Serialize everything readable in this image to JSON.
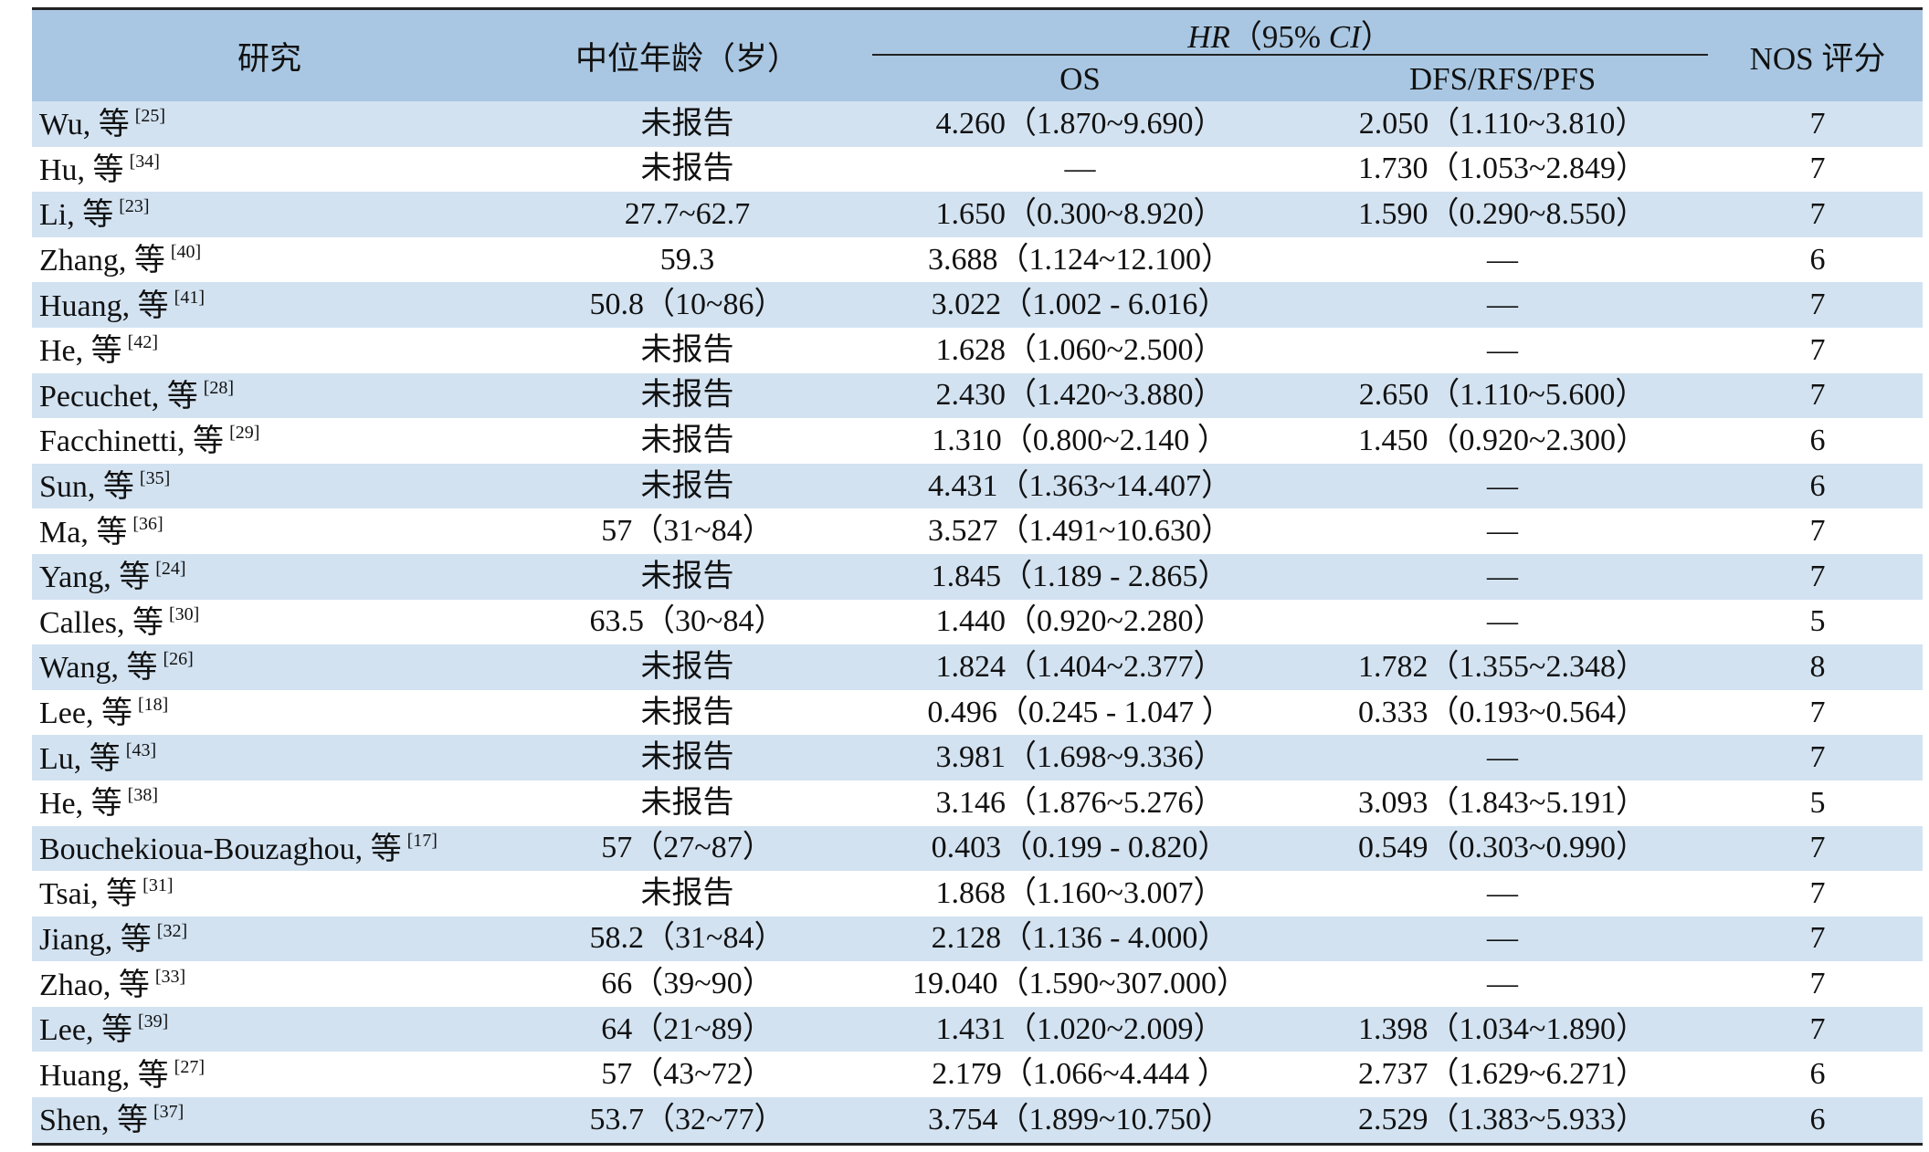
{
  "table": {
    "headers": {
      "study": "研究",
      "median_age": "中位年龄（岁）",
      "hr_prefix": "HR",
      "hr_middle": "（95% ",
      "hr_ci": "CI",
      "hr_suffix": "）",
      "os": "OS",
      "dfs": "DFS/RFS/PFS",
      "nos": "NOS 评分"
    },
    "rows": [
      {
        "author": "Wu, 等",
        "ref": "[25]",
        "age": "未报告",
        "os": "4.260（1.870~9.690）",
        "dfs": "2.050（1.110~3.810）",
        "nos": "7"
      },
      {
        "author": "Hu, 等",
        "ref": "[34]",
        "age": "未报告",
        "os": "—",
        "dfs": "1.730（1.053~2.849）",
        "nos": "7"
      },
      {
        "author": "Li, 等",
        "ref": "[23]",
        "age": "27.7~62.7",
        "os": "1.650（0.300~8.920）",
        "dfs": "1.590（0.290~8.550）",
        "nos": "7"
      },
      {
        "author": "Zhang, 等",
        "ref": "[40]",
        "age": "59.3",
        "os": "3.688（1.124~12.100）",
        "dfs": "—",
        "nos": "6"
      },
      {
        "author": "Huang, 等",
        "ref": "[41]",
        "age": "50.8（10~86）",
        "os": "3.022（1.002 - 6.016）",
        "dfs": "—",
        "nos": "7"
      },
      {
        "author": "He, 等",
        "ref": "[42]",
        "age": "未报告",
        "os": "1.628（1.060~2.500）",
        "dfs": "—",
        "nos": "7"
      },
      {
        "author": "Pecuchet, 等",
        "ref": "[28]",
        "age": "未报告",
        "os": "2.430（1.420~3.880）",
        "dfs": "2.650（1.110~5.600）",
        "nos": "7"
      },
      {
        "author": "Facchinetti, 等",
        "ref": "[29]",
        "age": "未报告",
        "os": "1.310（0.800~2.140 ）",
        "dfs": "1.450（0.920~2.300）",
        "nos": "6"
      },
      {
        "author": "Sun, 等",
        "ref": "[35]",
        "age": "未报告",
        "os": "4.431（1.363~14.407）",
        "dfs": "—",
        "nos": "6"
      },
      {
        "author": "Ma, 等",
        "ref": "[36]",
        "age": "57（31~84）",
        "os": "3.527（1.491~10.630）",
        "dfs": "—",
        "nos": "7"
      },
      {
        "author": "Yang, 等",
        "ref": "[24]",
        "age": "未报告",
        "os": "1.845（1.189 - 2.865）",
        "dfs": "—",
        "nos": "7"
      },
      {
        "author": "Calles, 等",
        "ref": "[30]",
        "age": "63.5（30~84）",
        "os": "1.440（0.920~2.280）",
        "dfs": "—",
        "nos": "5"
      },
      {
        "author": "Wang, 等",
        "ref": "[26]",
        "age": "未报告",
        "os": "1.824（1.404~2.377）",
        "dfs": "1.782（1.355~2.348）",
        "nos": "8"
      },
      {
        "author": "Lee, 等",
        "ref": "[18]",
        "age": "未报告",
        "os": "0.496（0.245 - 1.047 ）",
        "dfs": "0.333（0.193~0.564）",
        "nos": "7"
      },
      {
        "author": "Lu, 等",
        "ref": "[43]",
        "age": "未报告",
        "os": "3.981（1.698~9.336）",
        "dfs": "—",
        "nos": "7"
      },
      {
        "author": "He, 等",
        "ref": "[38]",
        "age": "未报告",
        "os": "3.146（1.876~5.276）",
        "dfs": "3.093（1.843~5.191）",
        "nos": "5"
      },
      {
        "author": "Bouchekioua-Bouzaghou, 等",
        "ref": "[17]",
        "age": "57（27~87）",
        "os": "0.403（0.199 - 0.820）",
        "dfs": "0.549（0.303~0.990）",
        "nos": "7"
      },
      {
        "author": "Tsai, 等",
        "ref": "[31]",
        "age": "未报告",
        "os": "1.868（1.160~3.007）",
        "dfs": "—",
        "nos": "7"
      },
      {
        "author": "Jiang, 等",
        "ref": "[32]",
        "age": "58.2（31~84）",
        "os": "2.128（1.136 - 4.000）",
        "dfs": "—",
        "nos": "7"
      },
      {
        "author": "Zhao, 等",
        "ref": "[33]",
        "age": "66（39~90）",
        "os": "19.040（1.590~307.000）",
        "dfs": "—",
        "nos": "7"
      },
      {
        "author": "Lee, 等",
        "ref": "[39]",
        "age": "64（21~89）",
        "os": "1.431（1.020~2.009）",
        "dfs": "1.398（1.034~1.890）",
        "nos": "7"
      },
      {
        "author": "Huang, 等",
        "ref": "[27]",
        "age": "57（43~72）",
        "os": "2.179（1.066~4.444 ）",
        "dfs": "2.737（1.629~6.271）",
        "nos": "6"
      },
      {
        "author": "Shen, 等",
        "ref": "[37]",
        "age": "53.7（32~77）",
        "os": "3.754（1.899~10.750）",
        "dfs": "2.529（1.383~5.933）",
        "nos": "6"
      }
    ]
  }
}
